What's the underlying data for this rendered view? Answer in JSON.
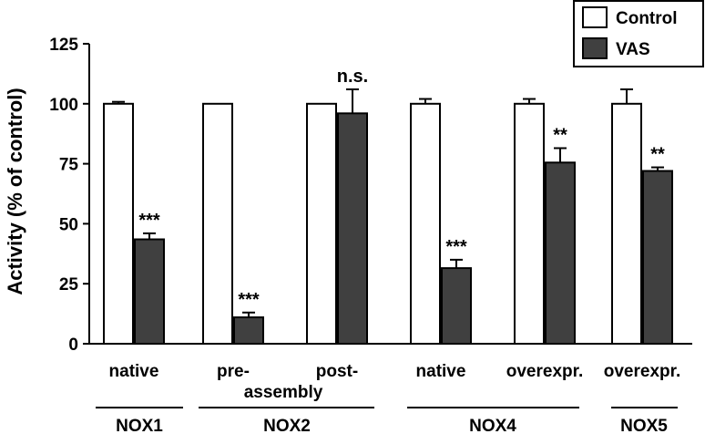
{
  "chart_data": {
    "type": "bar",
    "title": "",
    "ylabel": "Activity (% of control)",
    "ylim": [
      0,
      125
    ],
    "yticks": [
      0,
      25,
      50,
      75,
      100,
      125
    ],
    "grid": false,
    "legend_position": "top-right",
    "categories": [
      "native",
      "pre-",
      "post-",
      "native",
      "overexpr.",
      "overexpr."
    ],
    "category_sublabels": [
      "",
      "assembly",
      "",
      "",
      "",
      ""
    ],
    "groups": [
      {
        "label": "NOX1",
        "categories": [
          0
        ]
      },
      {
        "label": "NOX2",
        "categories": [
          1,
          2
        ]
      },
      {
        "label": "NOX4",
        "categories": [
          3,
          4
        ]
      },
      {
        "label": "NOX5",
        "categories": [
          5
        ]
      }
    ],
    "series": [
      {
        "name": "Control",
        "color": "#ffffff",
        "values": [
          100,
          100,
          100,
          100,
          100,
          100
        ],
        "errors": [
          0.8,
          0,
          0,
          2,
          2,
          6
        ]
      },
      {
        "name": "VAS",
        "color": "#404040",
        "values": [
          43.5,
          11,
          96,
          31.5,
          75.5,
          72
        ],
        "errors": [
          2.5,
          2,
          10,
          3.5,
          6,
          1.5
        ]
      }
    ],
    "significance": [
      "***",
      "***",
      "n.s.",
      "***",
      "**",
      "**"
    ]
  },
  "colors": {
    "axis": "#000000",
    "vas_fill": "#404040",
    "control_fill": "#ffffff"
  }
}
